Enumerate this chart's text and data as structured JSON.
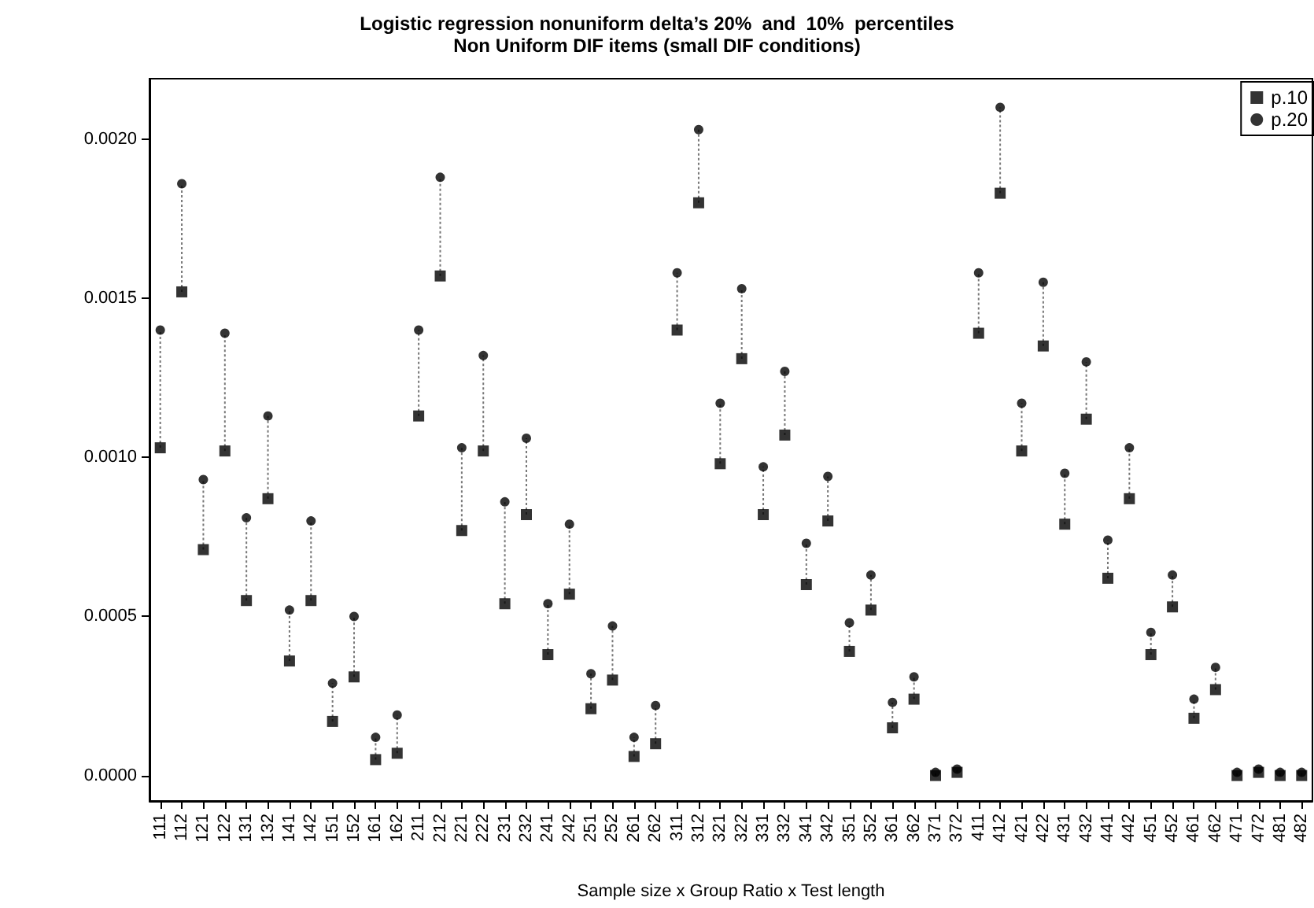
{
  "chart_data": {
    "type": "scatter",
    "title": "Logistic regression nonuniform delta’s 20%  and  10%  percentiles",
    "subtitle": "Non Uniform DIF items (small DIF conditions)",
    "xlabel": "Sample size x Group Ratio x Test length",
    "categories": [
      "111",
      "112",
      "121",
      "122",
      "131",
      "132",
      "141",
      "142",
      "151",
      "152",
      "161",
      "162",
      "211",
      "212",
      "221",
      "222",
      "231",
      "232",
      "241",
      "242",
      "251",
      "252",
      "261",
      "262",
      "311",
      "312",
      "321",
      "322",
      "331",
      "332",
      "341",
      "342",
      "351",
      "352",
      "361",
      "362",
      "371",
      "372",
      "411",
      "412",
      "421",
      "422",
      "431",
      "432",
      "441",
      "442",
      "451",
      "452",
      "461",
      "462",
      "471",
      "472",
      "481",
      "482"
    ],
    "series": [
      {
        "name": "p.10",
        "color": "#000000",
        "marker": "square",
        "values": [
          0.00103,
          0.00152,
          0.00071,
          0.00102,
          0.00055,
          0.00087,
          0.00036,
          0.00055,
          0.00017,
          0.00031,
          5e-05,
          7e-05,
          0.00113,
          0.00157,
          0.00077,
          0.00102,
          0.00054,
          0.00082,
          0.00038,
          0.00057,
          0.00021,
          0.0003,
          6e-05,
          0.0001,
          0.0014,
          0.0018,
          0.00098,
          0.00131,
          0.00082,
          0.00107,
          0.0006,
          0.0008,
          0.00039,
          0.00052,
          0.00015,
          0.00024,
          0.0,
          1e-05,
          0.00139,
          0.00183,
          0.00102,
          0.00135,
          0.00079,
          0.00112,
          0.00062,
          0.00087,
          0.00038,
          0.00053,
          0.00018,
          0.00027,
          0.0,
          1e-05,
          0.0,
          0.0
        ]
      },
      {
        "name": "p.20",
        "color": "#000000",
        "marker": "circle",
        "values": [
          0.0014,
          0.00186,
          0.00093,
          0.00139,
          0.00081,
          0.00113,
          0.00052,
          0.0008,
          0.00029,
          0.0005,
          0.00012,
          0.00019,
          0.0014,
          0.00188,
          0.00103,
          0.00132,
          0.00086,
          0.00106,
          0.00054,
          0.00079,
          0.00032,
          0.00047,
          0.00012,
          0.00022,
          0.00158,
          0.00203,
          0.00117,
          0.00153,
          0.00097,
          0.00127,
          0.00073,
          0.00094,
          0.00048,
          0.00063,
          0.00023,
          0.00031,
          1e-05,
          2e-05,
          0.00158,
          0.0021,
          0.00117,
          0.00155,
          0.00095,
          0.0013,
          0.00074,
          0.00103,
          0.00045,
          0.00063,
          0.00024,
          0.00034,
          1e-05,
          2e-05,
          1e-05,
          1e-05
        ]
      }
    ],
    "ylim": [
      -8e-05,
      0.00219
    ],
    "yticks": [
      {
        "value": 0,
        "label": "0.0000"
      },
      {
        "value": 0.0005,
        "label": "0.0005"
      },
      {
        "value": 0.001,
        "label": "0.0010"
      },
      {
        "value": 0.0015,
        "label": "0.0015"
      },
      {
        "value": 0.002,
        "label": "0.0020"
      }
    ],
    "grid": false,
    "legend": "top right"
  }
}
